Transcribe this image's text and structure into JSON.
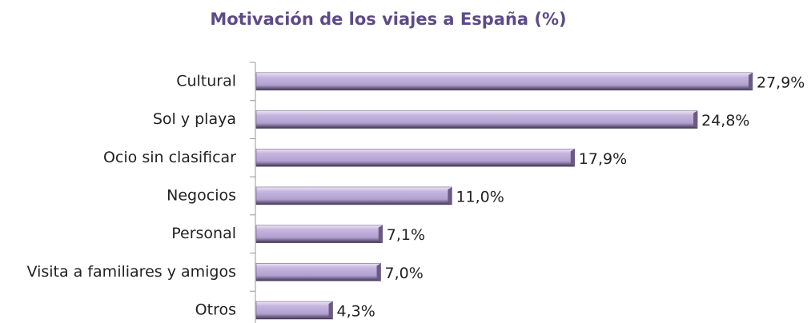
{
  "chart_data": {
    "type": "bar",
    "orientation": "horizontal",
    "title": "Motivación de los viajes a España (%)",
    "categories": [
      "Cultural",
      "Sol y playa",
      "Ocio sin clasificar",
      "Negocios",
      "Personal",
      "Visita a familiares y amigos",
      "Otros"
    ],
    "values": [
      27.9,
      24.8,
      17.9,
      11.0,
      7.1,
      7.0,
      4.3
    ],
    "value_labels": [
      "27,9%",
      "24,8%",
      "17,9%",
      "11,0%",
      "7,1%",
      "7,0%",
      "4,3%"
    ],
    "color": "#b9a6d6"
  }
}
